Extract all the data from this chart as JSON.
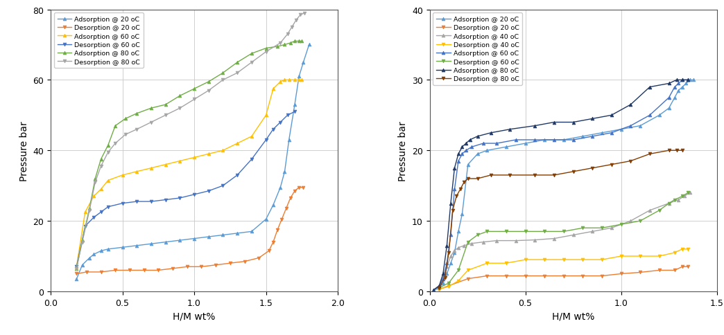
{
  "left": {
    "xlabel": "H/M wt%",
    "ylabel": "Pressure bar",
    "xlim": [
      0.1,
      2.0
    ],
    "ylim": [
      0,
      80
    ],
    "xticks": [
      0,
      0.5,
      1.0,
      1.5,
      2.0
    ],
    "yticks": [
      0,
      20,
      40,
      60,
      80
    ],
    "series": [
      {
        "label": "Adsorption @ 20 oC",
        "color": "#5B9BD5",
        "marker": "^",
        "linestyle": "-",
        "x": [
          0.18,
          0.22,
          0.27,
          0.3,
          0.35,
          0.4,
          0.5,
          0.6,
          0.7,
          0.8,
          0.9,
          1.0,
          1.1,
          1.2,
          1.3,
          1.4,
          1.5,
          1.55,
          1.6,
          1.63,
          1.66,
          1.7,
          1.73,
          1.76,
          1.8
        ],
        "y": [
          3.5,
          7.5,
          9.5,
          10.5,
          11.5,
          12.0,
          12.5,
          13.0,
          13.5,
          14.0,
          14.5,
          15.0,
          15.5,
          16.0,
          16.5,
          17.0,
          20.5,
          24.5,
          29.5,
          34.0,
          43.0,
          53.0,
          61.0,
          65.0,
          70.0
        ]
      },
      {
        "label": "Desorption @ 20 oC",
        "color": "#ED7D31",
        "marker": "^",
        "linestyle": "-",
        "x": [
          0.18,
          0.25,
          0.35,
          0.45,
          0.55,
          0.65,
          0.75,
          0.85,
          0.95,
          1.05,
          1.15,
          1.25,
          1.35,
          1.45,
          1.52,
          1.55,
          1.58,
          1.61,
          1.64,
          1.67,
          1.7,
          1.73,
          1.76
        ],
        "y": [
          5.0,
          5.5,
          5.5,
          6.0,
          6.0,
          6.0,
          6.0,
          6.5,
          7.0,
          7.0,
          7.5,
          8.0,
          8.5,
          9.5,
          11.5,
          14.0,
          17.5,
          20.5,
          23.5,
          26.5,
          28.5,
          29.5,
          29.5
        ]
      },
      {
        "label": "Adsorption @ 60 oC",
        "color": "#FFC000",
        "marker": "^",
        "linestyle": "-",
        "x": [
          0.18,
          0.24,
          0.3,
          0.35,
          0.4,
          0.5,
          0.6,
          0.7,
          0.8,
          0.9,
          1.0,
          1.1,
          1.2,
          1.3,
          1.4,
          1.5,
          1.55,
          1.6,
          1.63,
          1.66,
          1.7,
          1.73,
          1.75
        ],
        "y": [
          7.0,
          22.5,
          27.0,
          29.0,
          31.5,
          33.0,
          34.0,
          35.0,
          36.0,
          37.0,
          38.0,
          39.0,
          40.0,
          42.0,
          44.0,
          50.0,
          57.5,
          59.5,
          60.0,
          60.0,
          60.0,
          60.0,
          60.0
        ]
      },
      {
        "label": "Desorption @ 60 oC",
        "color": "#4472C4",
        "marker": "^",
        "linestyle": "-",
        "x": [
          0.18,
          0.24,
          0.3,
          0.35,
          0.4,
          0.5,
          0.6,
          0.7,
          0.8,
          0.9,
          1.0,
          1.1,
          1.2,
          1.3,
          1.4,
          1.5,
          1.55,
          1.6,
          1.65,
          1.7
        ],
        "y": [
          7.0,
          18.5,
          21.0,
          22.5,
          24.0,
          25.0,
          25.5,
          25.5,
          26.0,
          26.5,
          27.5,
          28.5,
          30.0,
          33.0,
          37.5,
          43.0,
          46.0,
          48.0,
          50.0,
          51.0
        ]
      },
      {
        "label": "Adsorption @ 80 oC",
        "color": "#70AD47",
        "marker": "^",
        "linestyle": "-",
        "x": [
          0.18,
          0.22,
          0.27,
          0.31,
          0.35,
          0.4,
          0.45,
          0.52,
          0.6,
          0.7,
          0.8,
          0.9,
          1.0,
          1.1,
          1.2,
          1.3,
          1.4,
          1.5,
          1.58,
          1.63,
          1.67,
          1.7,
          1.73,
          1.75
        ],
        "y": [
          6.5,
          14.5,
          23.5,
          32.0,
          37.5,
          41.5,
          47.0,
          49.0,
          50.5,
          52.0,
          53.0,
          55.5,
          57.5,
          59.5,
          62.0,
          65.0,
          67.5,
          69.0,
          69.5,
          70.0,
          70.5,
          71.0,
          71.0,
          71.0
        ]
      },
      {
        "label": "Desorption @ 80 oC",
        "color": "#A5A5A5",
        "marker": "^",
        "linestyle": "-",
        "x": [
          0.18,
          0.22,
          0.27,
          0.31,
          0.35,
          0.4,
          0.45,
          0.52,
          0.6,
          0.7,
          0.8,
          0.9,
          1.0,
          1.1,
          1.2,
          1.3,
          1.4,
          1.5,
          1.6,
          1.65,
          1.68,
          1.71,
          1.74,
          1.77
        ],
        "y": [
          6.5,
          14.0,
          23.0,
          31.0,
          35.5,
          39.5,
          42.0,
          44.5,
          46.0,
          48.0,
          50.0,
          52.0,
          54.5,
          57.0,
          60.0,
          62.0,
          65.0,
          68.0,
          70.5,
          73.0,
          75.0,
          77.0,
          78.5,
          79.0
        ]
      }
    ]
  },
  "right": {
    "xlabel": "H/M wt%",
    "ylabel": "Pressure bar",
    "xlim": [
      0.0,
      1.5
    ],
    "ylim": [
      0,
      40
    ],
    "xticks": [
      0,
      0.5,
      1.0,
      1.5
    ],
    "yticks": [
      0,
      10,
      20,
      30,
      40
    ],
    "series": [
      {
        "label": "Adsorption @ 20 oC",
        "color": "#5B9BD5",
        "marker": "^",
        "linestyle": "-",
        "x": [
          0.02,
          0.05,
          0.07,
          0.09,
          0.11,
          0.13,
          0.15,
          0.17,
          0.2,
          0.25,
          0.3,
          0.4,
          0.5,
          0.6,
          0.7,
          0.8,
          0.9,
          1.0,
          1.1,
          1.2,
          1.25,
          1.28,
          1.3,
          1.32,
          1.34,
          1.36,
          1.38
        ],
        "y": [
          0.1,
          0.5,
          1.2,
          2.5,
          4.0,
          5.5,
          8.5,
          11.0,
          18.0,
          19.5,
          20.0,
          20.5,
          21.0,
          21.5,
          21.5,
          22.0,
          22.5,
          23.0,
          23.5,
          25.0,
          26.0,
          27.5,
          28.5,
          29.0,
          29.5,
          30.0,
          30.0
        ]
      },
      {
        "label": "Desorption @ 20 oC",
        "color": "#ED7D31",
        "marker": "^",
        "linestyle": "-",
        "x": [
          0.05,
          0.1,
          0.2,
          0.3,
          0.4,
          0.5,
          0.6,
          0.7,
          0.8,
          0.9,
          1.0,
          1.1,
          1.2,
          1.28,
          1.32,
          1.35
        ],
        "y": [
          0.3,
          0.8,
          1.8,
          2.2,
          2.2,
          2.2,
          2.2,
          2.2,
          2.2,
          2.2,
          2.5,
          2.7,
          3.0,
          3.0,
          3.5,
          3.5
        ]
      },
      {
        "label": "Adsorption @ 40 oC",
        "color": "#A5A5A5",
        "marker": "^",
        "linestyle": "-",
        "x": [
          0.02,
          0.05,
          0.07,
          0.09,
          0.11,
          0.13,
          0.15,
          0.18,
          0.22,
          0.28,
          0.35,
          0.45,
          0.55,
          0.65,
          0.75,
          0.85,
          0.95,
          1.05,
          1.15,
          1.25,
          1.3,
          1.33,
          1.36
        ],
        "y": [
          0.2,
          0.8,
          2.0,
          3.5,
          5.0,
          5.8,
          6.2,
          6.5,
          6.8,
          7.0,
          7.2,
          7.2,
          7.3,
          7.5,
          8.0,
          8.5,
          9.0,
          10.0,
          11.5,
          12.5,
          13.0,
          13.5,
          14.0
        ]
      },
      {
        "label": "Desorption @ 40 oC",
        "color": "#FFC000",
        "marker": "^",
        "linestyle": "-",
        "x": [
          0.05,
          0.1,
          0.15,
          0.2,
          0.3,
          0.4,
          0.5,
          0.6,
          0.7,
          0.8,
          0.9,
          1.0,
          1.1,
          1.2,
          1.28,
          1.32,
          1.35
        ],
        "y": [
          0.3,
          0.7,
          1.5,
          3.0,
          4.0,
          4.0,
          4.5,
          4.5,
          4.5,
          4.5,
          4.5,
          5.0,
          5.0,
          5.0,
          5.5,
          6.0,
          6.0
        ]
      },
      {
        "label": "Adsorption @ 60 oC",
        "color": "#4472C4",
        "marker": "^",
        "linestyle": "-",
        "x": [
          0.02,
          0.05,
          0.07,
          0.09,
          0.11,
          0.13,
          0.15,
          0.17,
          0.19,
          0.22,
          0.28,
          0.35,
          0.45,
          0.55,
          0.65,
          0.75,
          0.85,
          0.95,
          1.05,
          1.15,
          1.25,
          1.28,
          1.3,
          1.32,
          1.35
        ],
        "y": [
          0.2,
          0.7,
          1.8,
          4.0,
          8.0,
          14.5,
          18.5,
          19.5,
          20.0,
          20.5,
          21.0,
          21.0,
          21.5,
          21.5,
          21.5,
          21.5,
          22.0,
          22.5,
          23.5,
          25.0,
          27.5,
          29.0,
          29.5,
          30.0,
          30.0
        ]
      },
      {
        "label": "Desorption @ 60 oC",
        "color": "#70AD47",
        "marker": "^",
        "linestyle": "-",
        "x": [
          0.05,
          0.1,
          0.15,
          0.2,
          0.25,
          0.3,
          0.4,
          0.5,
          0.6,
          0.7,
          0.8,
          0.9,
          1.0,
          1.1,
          1.2,
          1.25,
          1.28,
          1.32,
          1.35
        ],
        "y": [
          0.5,
          1.2,
          3.0,
          7.0,
          8.0,
          8.5,
          8.5,
          8.5,
          8.5,
          8.5,
          9.0,
          9.0,
          9.5,
          10.0,
          11.5,
          12.5,
          13.0,
          13.5,
          14.0
        ]
      },
      {
        "label": "Adsorption @ 80 oC",
        "color": "#203864",
        "marker": "^",
        "linestyle": "-",
        "x": [
          0.02,
          0.05,
          0.07,
          0.09,
          0.11,
          0.13,
          0.15,
          0.17,
          0.19,
          0.21,
          0.25,
          0.32,
          0.42,
          0.55,
          0.65,
          0.75,
          0.85,
          0.95,
          1.05,
          1.15,
          1.25,
          1.29,
          1.32,
          1.35
        ],
        "y": [
          0.2,
          0.8,
          2.5,
          6.5,
          12.5,
          17.5,
          19.5,
          20.5,
          21.0,
          21.5,
          22.0,
          22.5,
          23.0,
          23.5,
          24.0,
          24.0,
          24.5,
          25.0,
          26.5,
          29.0,
          29.5,
          30.0,
          30.0,
          30.0
        ]
      },
      {
        "label": "Desorption @ 80 oC",
        "color": "#843C00",
        "marker": "^",
        "linestyle": "-",
        "x": [
          0.05,
          0.08,
          0.1,
          0.12,
          0.14,
          0.16,
          0.18,
          0.2,
          0.25,
          0.32,
          0.42,
          0.55,
          0.65,
          0.75,
          0.85,
          0.95,
          1.05,
          1.15,
          1.25,
          1.29,
          1.32
        ],
        "y": [
          0.5,
          2.0,
          5.5,
          11.5,
          13.5,
          14.5,
          15.5,
          16.0,
          16.0,
          16.5,
          16.5,
          16.5,
          16.5,
          17.0,
          17.5,
          18.0,
          18.5,
          19.5,
          20.0,
          20.0,
          20.0
        ]
      }
    ]
  }
}
